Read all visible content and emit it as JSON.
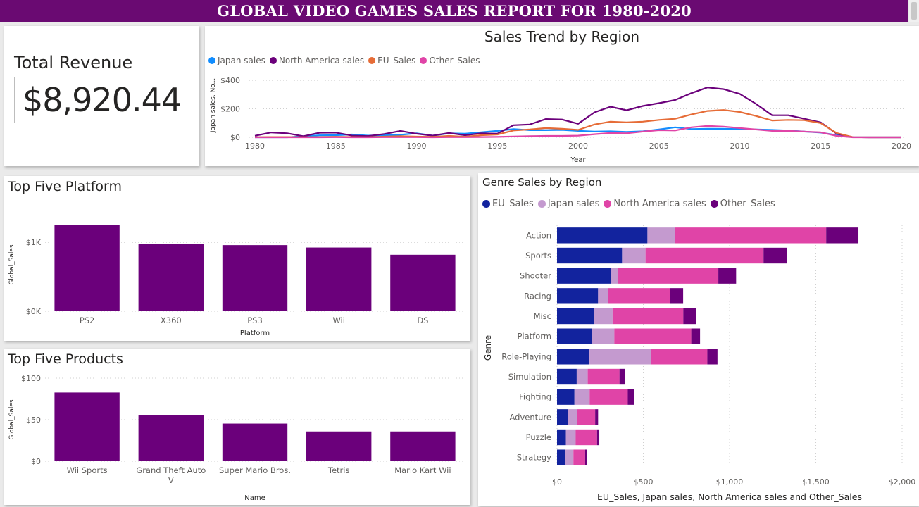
{
  "header": {
    "title": "GLOBAL VIDEO GAMES SALES REPORT FOR 1980-2020"
  },
  "kpi": {
    "title": "Total Revenue",
    "value": "$8,920.44"
  },
  "chart_data": [
    {
      "id": "trend",
      "type": "line",
      "title": "Sales Trend by Region",
      "xlabel": "Year",
      "ylabel": "Japan sales, No...",
      "xlim": [
        1980,
        2020
      ],
      "ylim": [
        0,
        450
      ],
      "x_ticks": [
        "1980",
        "1985",
        "1990",
        "1995",
        "2000",
        "2005",
        "2010",
        "2015",
        "2020"
      ],
      "y_ticks": [
        "$0",
        "$200",
        "$400"
      ],
      "grid": true,
      "legend_position": "top-left",
      "x": [
        1980,
        1981,
        1982,
        1983,
        1984,
        1985,
        1986,
        1987,
        1988,
        1989,
        1990,
        1991,
        1992,
        1993,
        1994,
        1995,
        1996,
        1997,
        1998,
        1999,
        2000,
        2001,
        2002,
        2003,
        2004,
        2005,
        2006,
        2007,
        2008,
        2009,
        2010,
        2011,
        2012,
        2013,
        2014,
        2015,
        2016,
        2017,
        2018,
        2019,
        2020
      ],
      "series": [
        {
          "name": "Japan sales",
          "color": "#118DFF",
          "values": [
            0,
            0,
            0,
            8,
            14,
            15,
            20,
            12,
            15,
            18,
            28,
            12,
            28,
            25,
            35,
            45,
            58,
            50,
            50,
            52,
            45,
            40,
            42,
            38,
            42,
            55,
            70,
            58,
            60,
            60,
            58,
            55,
            52,
            48,
            40,
            33,
            15,
            1,
            0,
            0,
            0
          ]
        },
        {
          "name": "North America sales",
          "color": "#6B007B",
          "values": [
            11,
            34,
            28,
            8,
            32,
            33,
            12,
            9,
            23,
            45,
            25,
            12,
            30,
            15,
            28,
            25,
            85,
            90,
            128,
            125,
            95,
            175,
            215,
            190,
            220,
            240,
            262,
            310,
            350,
            338,
            305,
            235,
            155,
            155,
            130,
            105,
            25,
            1,
            0,
            0,
            0
          ]
        },
        {
          "name": "EU_Sales",
          "color": "#E66C37",
          "values": [
            1,
            2,
            2,
            1,
            2,
            4,
            2,
            1,
            5,
            8,
            5,
            3,
            10,
            4,
            15,
            20,
            48,
            55,
            65,
            60,
            52,
            90,
            110,
            105,
            110,
            122,
            130,
            160,
            185,
            192,
            178,
            150,
            118,
            122,
            120,
            100,
            30,
            1,
            0,
            0,
            0
          ]
        },
        {
          "name": "Other_Sales",
          "color": "#E044A7",
          "values": [
            0,
            0,
            0,
            0,
            0,
            1,
            0,
            0,
            1,
            1,
            1,
            0,
            1,
            1,
            2,
            3,
            6,
            8,
            10,
            10,
            12,
            22,
            30,
            28,
            40,
            50,
            48,
            70,
            80,
            75,
            65,
            55,
            45,
            45,
            40,
            35,
            10,
            0,
            0,
            0,
            0
          ]
        }
      ]
    },
    {
      "id": "platform",
      "type": "bar",
      "title": "Top Five Platform",
      "xlabel": "Platform",
      "ylabel": "Global_Sales",
      "ylim": [
        0,
        1350
      ],
      "y_ticks": [
        "$0K",
        "$1K"
      ],
      "grid": true,
      "color": "#6B007B",
      "categories": [
        "PS2",
        "X360",
        "PS3",
        "Wii",
        "DS"
      ],
      "values": [
        1255,
        980,
        960,
        925,
        820
      ]
    },
    {
      "id": "products",
      "type": "bar",
      "title": "Top Five Products",
      "xlabel": "Name",
      "ylabel": "Global_Sales",
      "ylim": [
        0,
        100
      ],
      "y_ticks": [
        "$0",
        "$50",
        "$100"
      ],
      "grid": true,
      "color": "#6B007B",
      "categories": [
        "Wii Sports",
        "Grand Theft Auto V",
        "Super Mario Bros.",
        "Tetris",
        "Mario Kart Wii"
      ],
      "values": [
        82.7,
        55.9,
        45.3,
        35.8,
        35.8
      ]
    },
    {
      "id": "genre",
      "type": "bar",
      "orientation": "horizontal",
      "stacked": true,
      "title": "Genre Sales by Region",
      "xlabel": "EU_Sales, Japan sales, North America sales and Other_Sales",
      "ylabel": "Genre",
      "xlim": [
        0,
        2000
      ],
      "x_ticks": [
        "$0",
        "$500",
        "$1,000",
        "$1,500",
        "$2,000"
      ],
      "grid": true,
      "legend_position": "top-left",
      "categories": [
        "Action",
        "Sports",
        "Shooter",
        "Racing",
        "Misc",
        "Platform",
        "Role-Playing",
        "Simulation",
        "Fighting",
        "Adventure",
        "Puzzle",
        "Strategy"
      ],
      "series": [
        {
          "name": "EU_Sales",
          "color": "#12239E",
          "values": [
            524,
            377,
            314,
            238,
            215,
            201,
            188,
            114,
            101,
            64,
            51,
            45
          ]
        },
        {
          "name": "Japan sales",
          "color": "#C49ACF",
          "values": [
            158,
            136,
            39,
            57,
            107,
            131,
            356,
            64,
            88,
            52,
            57,
            50
          ]
        },
        {
          "name": "North America sales",
          "color": "#E044A7",
          "values": [
            878,
            684,
            582,
            359,
            410,
            446,
            327,
            184,
            221,
            105,
            124,
            68
          ]
        },
        {
          "name": "Other_Sales",
          "color": "#6B007B",
          "values": [
            187,
            134,
            103,
            77,
            74,
            51,
            59,
            31,
            36,
            17,
            13,
            12
          ]
        }
      ]
    }
  ]
}
